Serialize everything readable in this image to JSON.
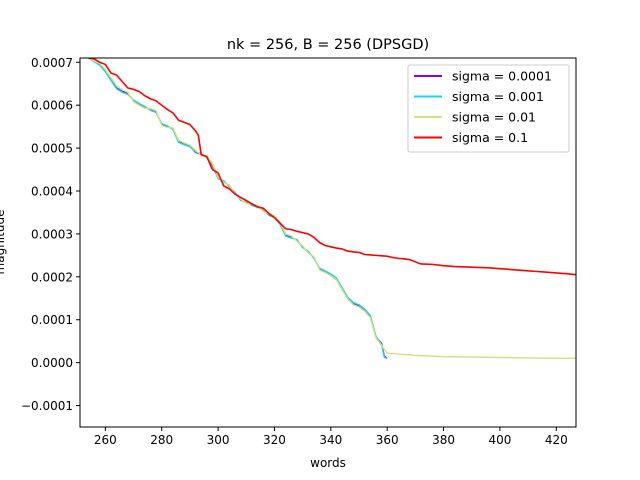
{
  "chart_data": {
    "type": "line",
    "title": "nk = 256, B = 256 (DPSGD)",
    "xlabel": "words",
    "ylabel": "magnitude",
    "xlim": [
      251,
      427
    ],
    "ylim": [
      -0.00015,
      0.00071
    ],
    "x_ticks": [
      260,
      280,
      300,
      320,
      340,
      360,
      380,
      400,
      420
    ],
    "x_tick_labels": [
      "260",
      "280",
      "300",
      "320",
      "340",
      "360",
      "380",
      "400",
      "420"
    ],
    "y_ticks": [
      -0.0001,
      0.0,
      0.0001,
      0.0002,
      0.0003,
      0.0004,
      0.0005,
      0.0006,
      0.0007
    ],
    "y_tick_labels": [
      "−0.0001",
      "0.0000",
      "0.0001",
      "0.0002",
      "0.0003",
      "0.0004",
      "0.0005",
      "0.0006",
      "0.0007"
    ],
    "grid": false,
    "legend_position": "top-right",
    "series": [
      {
        "name": "sigma = 0.0001",
        "color": "#8000ff",
        "x": [
          254,
          258,
          260,
          262,
          264,
          266,
          268,
          270,
          272,
          274,
          276,
          278,
          280,
          282,
          284,
          286,
          288,
          290,
          292,
          294,
          296,
          298,
          300,
          302,
          304,
          306,
          308,
          310,
          312,
          314,
          316,
          318,
          320,
          322,
          324,
          326,
          328,
          330,
          332,
          334,
          336,
          338,
          340,
          342,
          344,
          346,
          348,
          350,
          352,
          354,
          356,
          358,
          359,
          360
        ],
        "y": [
          0.00071,
          0.000695,
          0.00068,
          0.00066,
          0.00064,
          0.000632,
          0.000628,
          0.00061,
          0.000602,
          0.000595,
          0.00059,
          0.000585,
          0.000555,
          0.00055,
          0.000545,
          0.000515,
          0.00051,
          0.000505,
          0.00049,
          0.000485,
          0.00048,
          0.00046,
          0.00043,
          0.000422,
          0.000412,
          0.000395,
          0.00038,
          0.000373,
          0.000368,
          0.000364,
          0.000355,
          0.000345,
          0.00034,
          0.000325,
          0.000298,
          0.000292,
          0.000285,
          0.00027,
          0.000258,
          0.000245,
          0.000218,
          0.000212,
          0.000205,
          0.000195,
          0.000172,
          0.00015,
          0.000138,
          0.000133,
          0.000122,
          0.000108,
          6e-05,
          4.5e-05,
          1.5e-05,
          1e-05
        ]
      },
      {
        "name": "sigma = 0.001",
        "color": "#1cd6e0",
        "x": [
          254,
          258,
          260,
          262,
          264,
          266,
          268,
          270,
          272,
          274,
          276,
          278,
          280,
          282,
          284,
          286,
          288,
          290,
          292,
          294,
          296,
          298,
          300,
          302,
          304,
          306,
          308,
          310,
          312,
          314,
          316,
          318,
          320,
          322,
          324,
          326,
          328,
          330,
          332,
          334,
          336,
          338,
          340,
          342,
          344,
          346,
          348,
          350,
          352,
          354,
          356,
          358,
          359,
          360
        ],
        "y": [
          0.00071,
          0.000693,
          0.000678,
          0.000658,
          0.000638,
          0.00063,
          0.000625,
          0.000612,
          0.000604,
          0.000597,
          0.000588,
          0.000583,
          0.000557,
          0.000552,
          0.000543,
          0.000513,
          0.000508,
          0.000503,
          0.000492,
          0.000487,
          0.000478,
          0.000462,
          0.000428,
          0.000424,
          0.00041,
          0.000397,
          0.000378,
          0.000375,
          0.000366,
          0.000362,
          0.000357,
          0.000343,
          0.000338,
          0.000322,
          0.000295,
          0.00029,
          0.000287,
          0.000268,
          0.00026,
          0.000243,
          0.00022,
          0.000214,
          0.000207,
          0.000197,
          0.000175,
          0.000152,
          0.00014,
          0.000135,
          0.000125,
          0.00011,
          6.2e-05,
          4.2e-05,
          1.2e-05,
          1e-05
        ]
      },
      {
        "name": "sigma = 0.01",
        "color": "#d4e17f",
        "x": [
          254,
          258,
          260,
          262,
          264,
          266,
          268,
          270,
          272,
          274,
          276,
          278,
          280,
          282,
          284,
          286,
          288,
          290,
          292,
          294,
          296,
          298,
          300,
          302,
          304,
          306,
          308,
          310,
          312,
          314,
          316,
          318,
          320,
          322,
          324,
          326,
          328,
          330,
          332,
          334,
          336,
          338,
          340,
          342,
          344,
          346,
          348,
          350,
          352,
          354,
          356,
          358,
          360,
          370,
          380,
          390,
          400,
          410,
          420,
          427
        ],
        "y": [
          0.00071,
          0.000697,
          0.000683,
          0.000664,
          0.000645,
          0.000636,
          0.00063,
          0.000608,
          0.0006,
          0.000593,
          0.000592,
          0.000587,
          0.000553,
          0.000548,
          0.000547,
          0.000518,
          0.000512,
          0.000507,
          0.000495,
          0.000483,
          0.000482,
          0.000465,
          0.000432,
          0.00042,
          0.000414,
          0.000393,
          0.000382,
          0.000371,
          0.00037,
          0.000366,
          0.000353,
          0.000347,
          0.000342,
          0.000327,
          0.0003,
          0.000295,
          0.000283,
          0.000272,
          0.000256,
          0.000247,
          0.000216,
          0.00021,
          0.000203,
          0.000193,
          0.00017,
          0.000148,
          0.000135,
          0.00013,
          0.00012,
          0.000105,
          5.8e-05,
          4e-05,
          2.2e-05,
          1.7e-05,
          1.4e-05,
          1.3e-05,
          1.2e-05,
          1.1e-05,
          1e-05,
          1e-05
        ]
      },
      {
        "name": "sigma = 0.1",
        "color": "#ff0000",
        "x": [
          254,
          256,
          258,
          260,
          262,
          264,
          266,
          268,
          270,
          272,
          274,
          276,
          278,
          280,
          282,
          284,
          286,
          288,
          290,
          292,
          293,
          294,
          296,
          298,
          300,
          302,
          304,
          306,
          308,
          310,
          312,
          314,
          316,
          318,
          320,
          322,
          324,
          326,
          328,
          330,
          332,
          334,
          336,
          338,
          340,
          342,
          344,
          346,
          348,
          350,
          352,
          354,
          356,
          358,
          360,
          362,
          364,
          366,
          368,
          370,
          372,
          376,
          380,
          384,
          388,
          392,
          396,
          400,
          404,
          408,
          412,
          416,
          420,
          424,
          427
        ],
        "y": [
          0.00071,
          0.000708,
          0.0007,
          0.000695,
          0.000675,
          0.00067,
          0.000655,
          0.00064,
          0.000637,
          0.000632,
          0.000622,
          0.000615,
          0.00061,
          0.0006,
          0.00059,
          0.000582,
          0.000565,
          0.00056,
          0.000555,
          0.00054,
          0.00053,
          0.000485,
          0.00048,
          0.00045,
          0.000442,
          0.000412,
          0.000405,
          0.000393,
          0.000385,
          0.000378,
          0.00037,
          0.000363,
          0.00036,
          0.000348,
          0.000338,
          0.000325,
          0.000312,
          0.00031,
          0.000306,
          0.000303,
          0.0003,
          0.000292,
          0.00028,
          0.000273,
          0.00027,
          0.000267,
          0.000265,
          0.00026,
          0.000258,
          0.000257,
          0.000252,
          0.000251,
          0.00025,
          0.000249,
          0.000248,
          0.000245,
          0.000243,
          0.000242,
          0.00024,
          0.000235,
          0.00023,
          0.000229,
          0.000226,
          0.000224,
          0.000223,
          0.000222,
          0.000221,
          0.000219,
          0.000217,
          0.000215,
          0.000213,
          0.000211,
          0.000209,
          0.000207,
          0.000205
        ]
      }
    ]
  }
}
